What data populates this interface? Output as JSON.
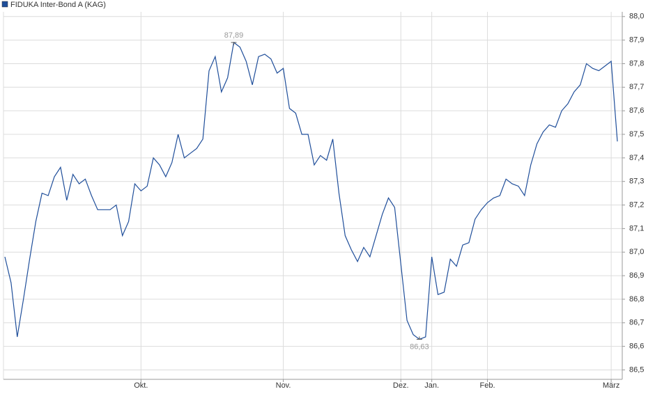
{
  "chart_data": {
    "type": "line",
    "categories": [
      null,
      null,
      null,
      null,
      null,
      null,
      null,
      null,
      null,
      null,
      null,
      null,
      null,
      null,
      null,
      null,
      null,
      null,
      null,
      null,
      null,
      null,
      "Okt.",
      null,
      null,
      null,
      null,
      null,
      null,
      null,
      null,
      null,
      null,
      null,
      null,
      null,
      null,
      null,
      null,
      null,
      null,
      null,
      null,
      null,
      null,
      "Nov.",
      null,
      null,
      null,
      null,
      null,
      null,
      null,
      null,
      null,
      null,
      null,
      null,
      null,
      null,
      null,
      null,
      null,
      null,
      "Dez.",
      null,
      null,
      null,
      null,
      "Jan.",
      null,
      null,
      null,
      null,
      null,
      null,
      null,
      null,
      "Feb.",
      null,
      null,
      null,
      null,
      null,
      null,
      null,
      null,
      null,
      null,
      null,
      null,
      null,
      null,
      null,
      null,
      null,
      null,
      null,
      "März",
      null
    ],
    "series": [
      {
        "name": "FIDUKA Inter-Bond A (KAG)",
        "color": "#1f4e9a",
        "values": [
          86.98,
          86.87,
          86.64,
          86.8,
          86.97,
          87.13,
          87.25,
          87.24,
          87.32,
          87.36,
          87.22,
          87.33,
          87.29,
          87.31,
          87.24,
          87.18,
          87.18,
          87.18,
          87.2,
          87.07,
          87.13,
          87.29,
          87.26,
          87.28,
          87.4,
          87.37,
          87.32,
          87.38,
          87.5,
          87.4,
          87.42,
          87.44,
          87.48,
          87.77,
          87.83,
          87.68,
          87.74,
          87.89,
          87.87,
          87.81,
          87.71,
          87.83,
          87.84,
          87.82,
          87.76,
          87.78,
          87.61,
          87.59,
          87.5,
          87.5,
          87.37,
          87.41,
          87.39,
          87.48,
          87.25,
          87.07,
          87.01,
          86.96,
          87.02,
          86.98,
          87.07,
          87.16,
          87.23,
          87.19,
          86.95,
          86.71,
          86.65,
          86.63,
          86.64,
          86.98,
          86.82,
          86.83,
          86.97,
          86.94,
          87.03,
          87.04,
          87.14,
          87.18,
          87.21,
          87.23,
          87.24,
          87.31,
          87.29,
          87.28,
          87.24,
          87.37,
          87.46,
          87.51,
          87.54,
          87.53,
          87.6,
          87.63,
          87.68,
          87.71,
          87.8,
          87.78,
          87.77,
          87.79,
          87.81,
          87.47
        ],
        "value_labels": [
          null,
          null,
          null,
          null,
          null,
          null,
          null,
          null,
          null,
          null,
          null,
          null,
          null,
          null,
          null,
          null,
          null,
          null,
          null,
          null,
          null,
          null,
          null,
          null,
          null,
          null,
          null,
          null,
          null,
          null,
          null,
          null,
          null,
          null,
          null,
          null,
          null,
          "87,89",
          null,
          null,
          null,
          null,
          null,
          null,
          null,
          null,
          null,
          null,
          null,
          null,
          null,
          null,
          null,
          null,
          null,
          null,
          null,
          null,
          null,
          null,
          null,
          null,
          null,
          null,
          null,
          null,
          null,
          "86,63",
          null,
          null,
          null,
          null,
          null,
          null,
          null,
          null,
          null,
          null,
          null,
          null,
          null,
          null,
          null,
          null,
          null,
          null,
          null,
          null,
          null,
          null,
          null,
          null,
          null,
          null,
          null,
          null,
          null,
          null,
          null,
          null
        ]
      }
    ],
    "ylim": [
      86.46,
      88.02
    ],
    "yticks": [
      {
        "value": 86.5,
        "label": "86,5"
      },
      {
        "value": 86.6,
        "label": "86,6"
      },
      {
        "value": 86.7,
        "label": "86,7"
      },
      {
        "value": 86.8,
        "label": "86,8"
      },
      {
        "value": 86.9,
        "label": "86,9"
      },
      {
        "value": 87.0,
        "label": "87,0"
      },
      {
        "value": 87.1,
        "label": "87,1"
      },
      {
        "value": 87.2,
        "label": "87,2"
      },
      {
        "value": 87.3,
        "label": "87,3"
      },
      {
        "value": 87.4,
        "label": "87,4"
      },
      {
        "value": 87.5,
        "label": "87,5"
      },
      {
        "value": 87.6,
        "label": "87,6"
      },
      {
        "value": 87.7,
        "label": "87,7"
      },
      {
        "value": 87.8,
        "label": "87,8"
      },
      {
        "value": 87.9,
        "label": "87,9"
      },
      {
        "value": 88.0,
        "label": "88,0"
      }
    ],
    "grid": true,
    "legend": "top-left"
  }
}
